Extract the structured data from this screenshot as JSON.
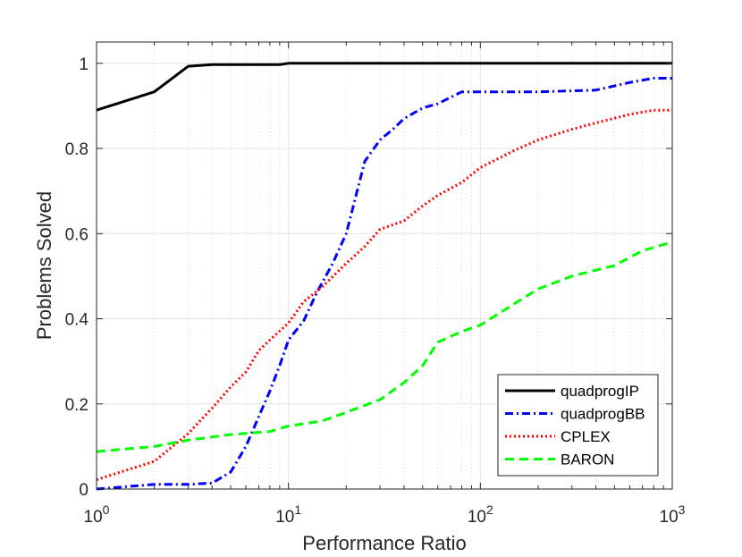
{
  "chart_data": {
    "type": "line",
    "xscale": "log",
    "xlabel": "Performance Ratio",
    "ylabel": "Problems Solved",
    "xlim": [
      1,
      1000
    ],
    "ylim": [
      0,
      1.05
    ],
    "grid": true,
    "legend_position": "bottom-right",
    "x_tick_labels": [
      {
        "base": "10",
        "exp": "0"
      },
      {
        "base": "10",
        "exp": "1"
      },
      {
        "base": "10",
        "exp": "2"
      },
      {
        "base": "10",
        "exp": "3"
      }
    ],
    "y_ticks": [
      "0",
      "0.2",
      "0.4",
      "0.6",
      "0.8",
      "1"
    ],
    "series": [
      {
        "name": "quadprogIP",
        "color": "#000000",
        "dash": "solid",
        "points": [
          [
            1,
            0.89
          ],
          [
            2,
            0.933
          ],
          [
            3,
            0.993
          ],
          [
            4,
            0.997
          ],
          [
            9,
            0.997
          ],
          [
            10,
            1.0
          ],
          [
            1000,
            1.0
          ]
        ]
      },
      {
        "name": "quadprogBB",
        "color": "#0000FF",
        "dash": "dashdot",
        "points": [
          [
            1,
            0.0
          ],
          [
            2,
            0.011
          ],
          [
            3,
            0.011
          ],
          [
            4,
            0.014
          ],
          [
            5,
            0.04
          ],
          [
            6,
            0.1
          ],
          [
            7,
            0.17
          ],
          [
            8,
            0.23
          ],
          [
            9,
            0.29
          ],
          [
            10,
            0.35
          ],
          [
            12,
            0.395
          ],
          [
            14,
            0.46
          ],
          [
            17,
            0.53
          ],
          [
            20,
            0.6
          ],
          [
            25,
            0.77
          ],
          [
            30,
            0.82
          ],
          [
            35,
            0.845
          ],
          [
            40,
            0.87
          ],
          [
            50,
            0.895
          ],
          [
            60,
            0.905
          ],
          [
            70,
            0.92
          ],
          [
            80,
            0.933
          ],
          [
            100,
            0.933
          ],
          [
            200,
            0.933
          ],
          [
            400,
            0.937
          ],
          [
            600,
            0.955
          ],
          [
            800,
            0.965
          ],
          [
            1000,
            0.965
          ]
        ]
      },
      {
        "name": "CPLEX",
        "color": "#FF0000",
        "dash": "dotted",
        "points": [
          [
            1,
            0.022
          ],
          [
            2,
            0.065
          ],
          [
            3,
            0.13
          ],
          [
            4,
            0.19
          ],
          [
            5,
            0.24
          ],
          [
            6,
            0.275
          ],
          [
            7,
            0.325
          ],
          [
            8,
            0.35
          ],
          [
            10,
            0.39
          ],
          [
            12,
            0.44
          ],
          [
            15,
            0.475
          ],
          [
            20,
            0.53
          ],
          [
            25,
            0.57
          ],
          [
            30,
            0.61
          ],
          [
            40,
            0.63
          ],
          [
            50,
            0.665
          ],
          [
            60,
            0.69
          ],
          [
            80,
            0.72
          ],
          [
            100,
            0.755
          ],
          [
            150,
            0.795
          ],
          [
            200,
            0.82
          ],
          [
            300,
            0.845
          ],
          [
            400,
            0.86
          ],
          [
            600,
            0.88
          ],
          [
            800,
            0.89
          ],
          [
            1000,
            0.89
          ]
        ]
      },
      {
        "name": "BARON",
        "color": "#00FF00",
        "dash": "dashed",
        "points": [
          [
            1,
            0.088
          ],
          [
            2,
            0.1
          ],
          [
            3,
            0.115
          ],
          [
            5,
            0.128
          ],
          [
            8,
            0.135
          ],
          [
            10,
            0.148
          ],
          [
            15,
            0.16
          ],
          [
            20,
            0.18
          ],
          [
            30,
            0.21
          ],
          [
            40,
            0.25
          ],
          [
            50,
            0.29
          ],
          [
            60,
            0.345
          ],
          [
            80,
            0.37
          ],
          [
            100,
            0.385
          ],
          [
            150,
            0.435
          ],
          [
            200,
            0.47
          ],
          [
            300,
            0.5
          ],
          [
            500,
            0.525
          ],
          [
            700,
            0.56
          ],
          [
            1000,
            0.58
          ]
        ]
      }
    ]
  }
}
